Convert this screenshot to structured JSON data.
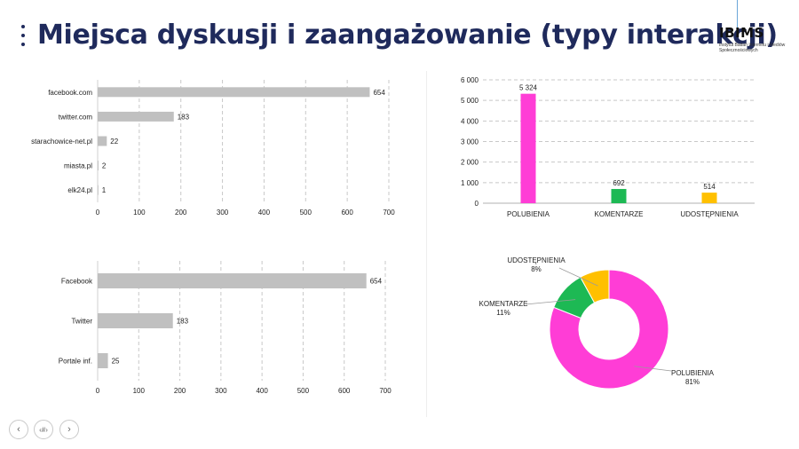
{
  "page": {
    "title": "Miejsca dyskusji i zaangażowanie (typy interakcji)",
    "logo_text": "IBIMS",
    "logo_subtitle": "Instytut Badań Internetu i Mediów Społecznościowych"
  },
  "nav": {
    "prev_glyph": "‹",
    "page_label": "‹#›",
    "next_glyph": "›"
  },
  "colors": {
    "bar_gray": "#c0c0c0",
    "polubienia": "#ff3dd6",
    "komentarze": "#1db954",
    "udostepnienia": "#ffc000",
    "grid": "#c8c8c8"
  },
  "chart_data": [
    {
      "type": "bar",
      "orientation": "horizontal",
      "categories": [
        "facebook.com",
        "twitter.com",
        "starachowice-net.pl",
        "miasta.pl",
        "elk24.pl"
      ],
      "values": [
        654,
        183,
        22,
        2,
        1
      ],
      "xticks": [
        "0",
        "100",
        "200",
        "300",
        "400",
        "500",
        "600",
        "700"
      ],
      "xlim": [
        0,
        700
      ],
      "grid": true
    },
    {
      "type": "bar",
      "orientation": "vertical",
      "categories": [
        "POLUBIENIA",
        "KOMENTARZE",
        "UDOSTĘPNIENIA"
      ],
      "values": [
        5324,
        692,
        514
      ],
      "value_labels": [
        "5 324",
        "692",
        "514"
      ],
      "yticks": [
        "0",
        "1 000",
        "2 000",
        "3 000",
        "4 000",
        "5 000",
        "6 000"
      ],
      "ylim": [
        0,
        6000
      ],
      "grid": true
    },
    {
      "type": "bar",
      "orientation": "horizontal",
      "categories": [
        "Facebook",
        "Twitter",
        "Portale inf."
      ],
      "values": [
        654,
        183,
        25
      ],
      "xticks": [
        "0",
        "100",
        "200",
        "300",
        "400",
        "500",
        "600",
        "700"
      ],
      "xlim": [
        0,
        700
      ],
      "grid": true
    },
    {
      "type": "pie",
      "donut": true,
      "labels": [
        "POLUBIENIA",
        "KOMENTARZE",
        "UDOSTĘPNIENIA"
      ],
      "percent_labels": [
        "81%",
        "11%",
        "8%"
      ],
      "values": [
        81,
        11,
        8
      ]
    }
  ]
}
